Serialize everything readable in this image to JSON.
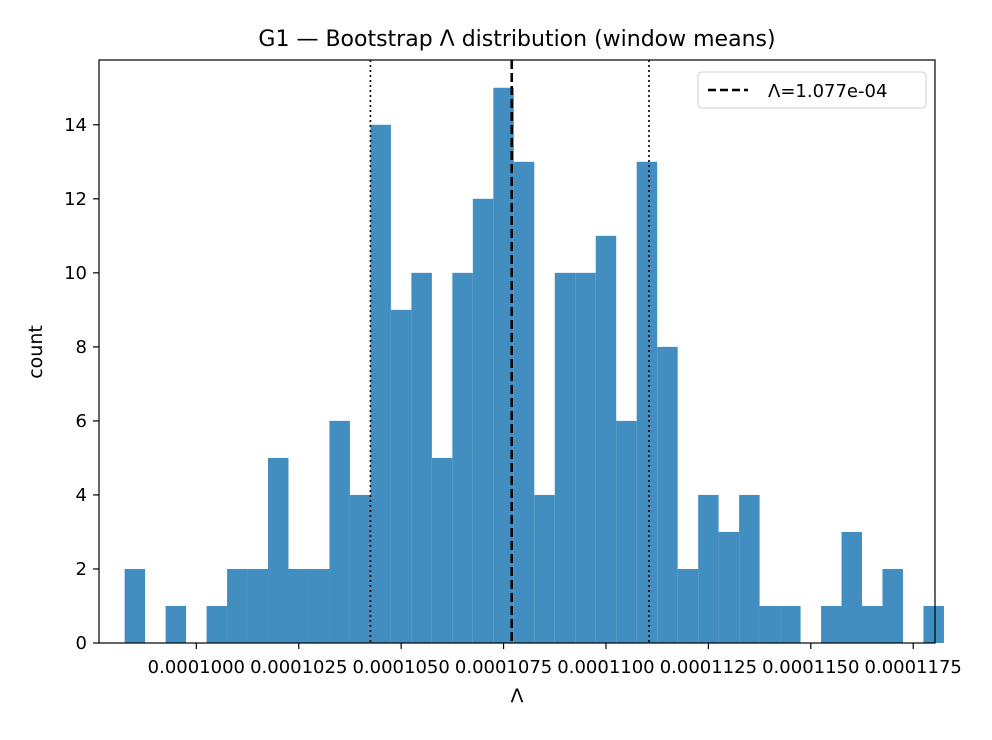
{
  "chart_data": {
    "type": "bar",
    "title": "G1 — Bootstrap Λ distribution (window means)",
    "xlabel": "Λ",
    "ylabel": "count",
    "xlim": [
      9.7624e-05,
      0.000118032
    ],
    "ylim": [
      0,
      15.75
    ],
    "bin_width": 5e-07,
    "x_tick_values": [
      0.0001,
      0.0001025,
      0.000105,
      0.0001075,
      0.00011,
      0.0001125,
      0.000115,
      0.0001175
    ],
    "x_tick_labels": [
      "0.0001000",
      "0.0001025",
      "0.0001050",
      "0.0001075",
      "0.0001100",
      "0.0001125",
      "0.0001150",
      "0.0001175"
    ],
    "y_ticks": [
      0,
      2,
      4,
      6,
      8,
      10,
      12,
      14
    ],
    "y_tick_labels": [
      "0",
      "2",
      "4",
      "6",
      "8",
      "10",
      "12",
      "14"
    ],
    "bins": [
      {
        "x": 9.85e-05,
        "count": 2
      },
      {
        "x": 9.9e-05,
        "count": 0
      },
      {
        "x": 9.95e-05,
        "count": 1
      },
      {
        "x": 0.0001,
        "count": 0
      },
      {
        "x": 0.0001005,
        "count": 1
      },
      {
        "x": 0.000101,
        "count": 2
      },
      {
        "x": 0.0001015,
        "count": 2
      },
      {
        "x": 0.000102,
        "count": 5
      },
      {
        "x": 0.0001025,
        "count": 2
      },
      {
        "x": 0.000103,
        "count": 2
      },
      {
        "x": 0.0001035,
        "count": 6
      },
      {
        "x": 0.000104,
        "count": 4
      },
      {
        "x": 0.0001045,
        "count": 14
      },
      {
        "x": 0.000105,
        "count": 9
      },
      {
        "x": 0.0001055,
        "count": 10
      },
      {
        "x": 0.000106,
        "count": 5
      },
      {
        "x": 0.0001065,
        "count": 10
      },
      {
        "x": 0.000107,
        "count": 12
      },
      {
        "x": 0.0001075,
        "count": 15
      },
      {
        "x": 0.000108,
        "count": 13
      },
      {
        "x": 0.0001085,
        "count": 4
      },
      {
        "x": 0.000109,
        "count": 10
      },
      {
        "x": 0.0001095,
        "count": 10
      },
      {
        "x": 0.00011,
        "count": 11
      },
      {
        "x": 0.0001105,
        "count": 6
      },
      {
        "x": 0.000111,
        "count": 13
      },
      {
        "x": 0.0001115,
        "count": 8
      },
      {
        "x": 0.000112,
        "count": 2
      },
      {
        "x": 0.0001125,
        "count": 4
      },
      {
        "x": 0.000113,
        "count": 3
      },
      {
        "x": 0.0001135,
        "count": 4
      },
      {
        "x": 0.000114,
        "count": 1
      },
      {
        "x": 0.0001145,
        "count": 1
      },
      {
        "x": 0.000115,
        "count": 0
      },
      {
        "x": 0.0001155,
        "count": 1
      },
      {
        "x": 0.000116,
        "count": 3
      },
      {
        "x": 0.0001165,
        "count": 1
      },
      {
        "x": 0.000117,
        "count": 2
      },
      {
        "x": 0.0001175,
        "count": 0
      },
      {
        "x": 0.000118,
        "count": 1
      }
    ],
    "mean_line": {
      "x": 0.0001077,
      "style": "dashed",
      "label": "Λ=1.077e-04"
    },
    "ci_lines": [
      {
        "x": 0.00010425,
        "style": "dotted"
      },
      {
        "x": 0.00011105,
        "style": "dotted"
      }
    ],
    "legend_position": "top-right",
    "grid": false,
    "colors": {
      "bar": "#438ec0",
      "line": "#000000"
    }
  }
}
